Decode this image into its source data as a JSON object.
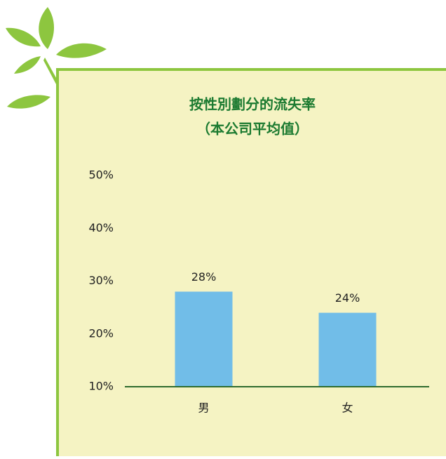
{
  "chart_data": {
    "type": "bar",
    "title": "按性別劃分的流失率",
    "subtitle": "（本公司平均值）",
    "categories": [
      "男",
      "女"
    ],
    "values": [
      28,
      24
    ],
    "value_labels": [
      "28%",
      "24%"
    ],
    "color": "#71bde8",
    "ylim": [
      10,
      50
    ],
    "yticks": [
      {
        "value": 10,
        "label": "10%"
      },
      {
        "value": 20,
        "label": "20%"
      },
      {
        "value": 30,
        "label": "30%"
      },
      {
        "value": 40,
        "label": "40%"
      },
      {
        "value": 50,
        "label": "50%"
      }
    ],
    "grid": false
  }
}
